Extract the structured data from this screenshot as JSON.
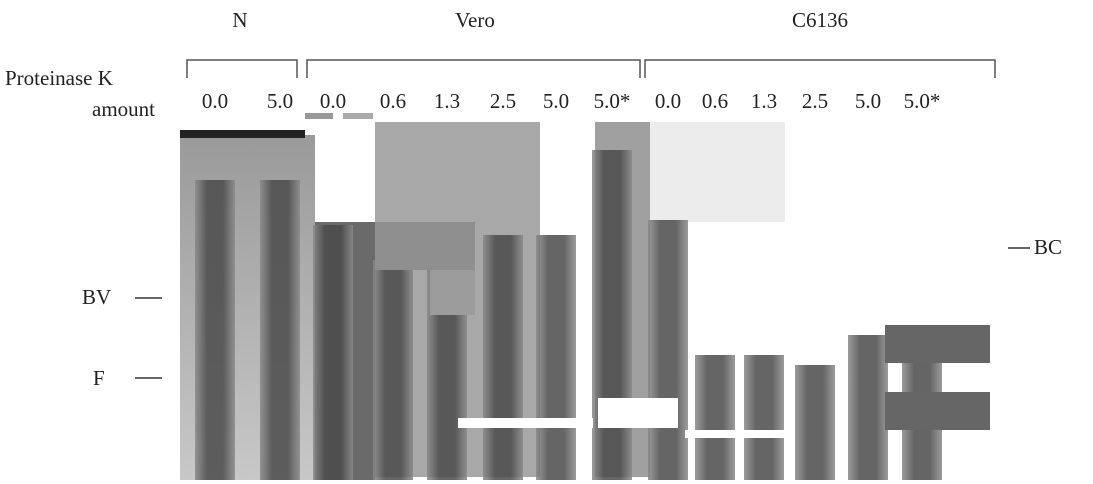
{
  "groups": [
    "N",
    "Vero",
    "C6136"
  ],
  "row_label": {
    "line1": "Proteinase K",
    "line2": "amount"
  },
  "lanes": [
    "0.0",
    "5.0",
    "0.0",
    "0.6",
    "1.3",
    "2.5",
    "5.0",
    "5.0*",
    "0.0",
    "0.6",
    "1.3",
    "2.5",
    "5.0",
    "5.0*"
  ],
  "markers": {
    "bv": "BV",
    "f": "F",
    "bc": "BC"
  }
}
